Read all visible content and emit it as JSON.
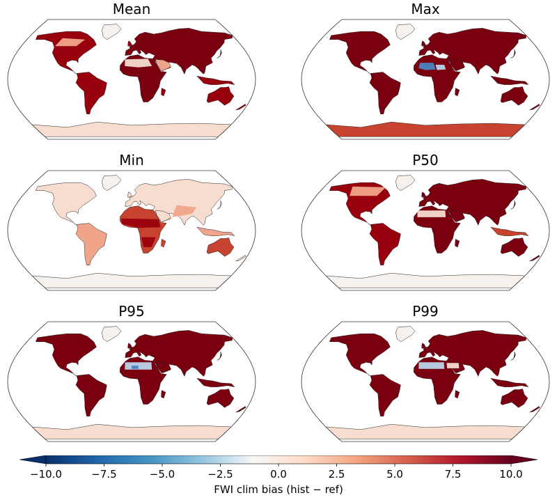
{
  "panels": [
    {
      "title": "Mean",
      "theme": "mean"
    },
    {
      "title": "Max",
      "theme": "max"
    },
    {
      "title": "Min",
      "theme": "min"
    },
    {
      "title": "P50",
      "theme": "p50"
    },
    {
      "title": "P95",
      "theme": "p95"
    },
    {
      "title": "P99",
      "theme": "p99"
    }
  ],
  "colorbar": {
    "label": "FWI clim bias (hist − ref)",
    "min": -10.0,
    "max": 10.0,
    "extend": "both",
    "ticks": [
      "−10.0",
      "−7.5",
      "−5.0",
      "−2.5",
      "0.0",
      "2.5",
      "5.0",
      "7.5",
      "10.0"
    ],
    "colors": [
      "#08306b",
      "#2166ac",
      "#4393c3",
      "#92c5de",
      "#f7f7f7",
      "#fddbc7",
      "#f4a582",
      "#d6604d",
      "#b2182b",
      "#67001f"
    ]
  },
  "palette": {
    "deep_red": "#7a0010",
    "dark_red": "#99000d",
    "mid_red": "#c8432f",
    "light_red": "#f0a58a",
    "pale": "#f6ddd0",
    "very_pale": "#f7f1ee",
    "blue": "#4a86bd",
    "light_blue": "#b9d4ea"
  }
}
